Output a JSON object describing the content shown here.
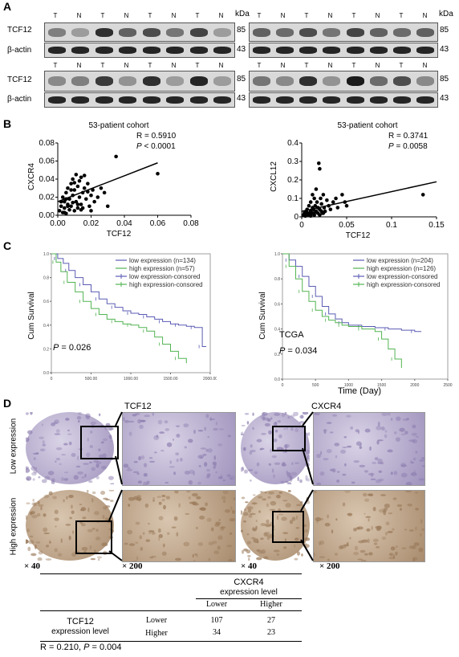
{
  "panels": {
    "A": "A",
    "B": "B",
    "C": "C",
    "D": "D"
  },
  "western": {
    "kda_label": "kDa",
    "lanes": [
      "T",
      "N",
      "T",
      "N",
      "T",
      "N",
      "T",
      "N"
    ],
    "rows": [
      {
        "label": "TCF12",
        "kda": "85"
      },
      {
        "label": "β-actin",
        "kda": "43"
      },
      {
        "label": "TCF12",
        "kda": "85"
      },
      {
        "label": "β-actin",
        "kda": "43"
      }
    ],
    "intensity": {
      "left_top": [
        0.45,
        0.3,
        0.85,
        0.6,
        0.7,
        0.5,
        0.75,
        0.3
      ],
      "right_top": [
        0.6,
        0.55,
        0.7,
        0.5,
        0.75,
        0.6,
        0.55,
        0.6
      ],
      "left_bot": [
        0.4,
        0.45,
        0.8,
        0.35,
        0.85,
        0.3,
        0.9,
        0.3
      ],
      "right_bot": [
        0.5,
        0.4,
        0.85,
        0.35,
        0.95,
        0.55,
        0.7,
        0.4
      ]
    },
    "colors": {
      "band": "#111111",
      "blot_bg": "#d6d6d6"
    }
  },
  "chart_data": [
    {
      "type": "scatter",
      "title": "53-patient cohort",
      "stat_r": "R = 0.5910",
      "stat_p_symbol": "P",
      "stat_p_value": " < 0.0001",
      "xlabel": "TCF12",
      "ylabel": "CXCR4",
      "xlim": [
        0,
        0.08
      ],
      "ylim": [
        0,
        0.08
      ],
      "xticks": [
        "0.00",
        "0.02",
        "0.04",
        "0.06",
        "0.08"
      ],
      "yticks": [
        "0.00",
        "0.02",
        "0.04",
        "0.06",
        "0.08"
      ],
      "x": [
        0.001,
        0.002,
        0.003,
        0.003,
        0.004,
        0.004,
        0.005,
        0.005,
        0.006,
        0.006,
        0.007,
        0.007,
        0.008,
        0.008,
        0.009,
        0.009,
        0.01,
        0.01,
        0.011,
        0.011,
        0.012,
        0.012,
        0.013,
        0.013,
        0.014,
        0.014,
        0.015,
        0.016,
        0.017,
        0.018,
        0.019,
        0.02,
        0.021,
        0.022,
        0.024,
        0.026,
        0.028,
        0.03,
        0.035,
        0.06,
        0.002,
        0.004,
        0.006,
        0.008,
        0.01,
        0.012,
        0.014,
        0.016,
        0.018,
        0.02,
        0.005,
        0.009,
        0.015
      ],
      "y": [
        0.005,
        0.01,
        0.003,
        0.02,
        0.008,
        0.015,
        0.002,
        0.025,
        0.012,
        0.03,
        0.006,
        0.018,
        0.035,
        0.01,
        0.022,
        0.04,
        0.005,
        0.028,
        0.015,
        0.045,
        0.008,
        0.032,
        0.02,
        0.038,
        0.012,
        0.042,
        0.025,
        0.03,
        0.018,
        0.035,
        0.01,
        0.022,
        0.028,
        0.015,
        0.02,
        0.03,
        0.025,
        0.01,
        0.065,
        0.046,
        0.015,
        0.003,
        0.01,
        0.028,
        0.036,
        0.012,
        0.006,
        0.044,
        0.026,
        0.005,
        0.018,
        0.014,
        0.008
      ],
      "fit": {
        "x": [
          0,
          0.06
        ],
        "y": [
          0.015,
          0.058
        ]
      }
    },
    {
      "type": "scatter",
      "title": "53-patient cohort",
      "stat_r": "R = 0.3741",
      "stat_p_symbol": "P",
      "stat_p_value": " = 0.0058",
      "xlabel": "TCF12",
      "ylabel": "CXCL12",
      "xlim": [
        0,
        0.15
      ],
      "ylim": [
        0,
        0.4
      ],
      "xticks": [
        "0",
        "0.05",
        "0.1",
        "0.15"
      ],
      "yticks": [
        "0",
        "0.1",
        "0.2",
        "0.3",
        "0.4"
      ],
      "x": [
        0.002,
        0.003,
        0.004,
        0.005,
        0.005,
        0.006,
        0.007,
        0.007,
        0.008,
        0.009,
        0.01,
        0.01,
        0.011,
        0.012,
        0.012,
        0.013,
        0.014,
        0.014,
        0.015,
        0.016,
        0.016,
        0.017,
        0.018,
        0.019,
        0.02,
        0.02,
        0.021,
        0.022,
        0.023,
        0.024,
        0.025,
        0.026,
        0.028,
        0.03,
        0.032,
        0.035,
        0.038,
        0.04,
        0.045,
        0.048,
        0.05,
        0.135,
        0.004,
        0.008,
        0.012,
        0.016,
        0.02,
        0.024,
        0.006,
        0.01,
        0.014,
        0.018,
        0.022
      ],
      "y": [
        0.01,
        0.02,
        0.005,
        0.03,
        0.01,
        0.04,
        0.015,
        0.02,
        0.06,
        0.01,
        0.03,
        0.08,
        0.02,
        0.05,
        0.12,
        0.04,
        0.02,
        0.1,
        0.06,
        0.03,
        0.15,
        0.08,
        0.05,
        0.29,
        0.04,
        0.26,
        0.1,
        0.07,
        0.02,
        0.12,
        0.05,
        0.03,
        0.09,
        0.06,
        0.04,
        0.08,
        0.1,
        0.05,
        0.12,
        0.08,
        0.06,
        0.12,
        0.005,
        0.01,
        0.02,
        0.03,
        0.01,
        0.02,
        0.04,
        0.005,
        0.01,
        0.02,
        0.03
      ],
      "fit": {
        "x": [
          0,
          0.15
        ],
        "y": [
          0.03,
          0.19
        ]
      }
    },
    {
      "type": "line",
      "ylabel": "Cum Survival",
      "xlabel": "",
      "p_symbol": "P",
      "p_value": " = 0.026",
      "annotation": "",
      "legend_position": "top-right",
      "legend": [
        "low expression (n=134)",
        "high expression (n=57)",
        "low expression-consored",
        "high expression-consored"
      ],
      "xlim": [
        0,
        2000
      ],
      "ylim": [
        0,
        1.0
      ],
      "xticks": [
        "0",
        "500.00",
        "1000.00",
        "1500.00",
        "2000.00"
      ],
      "yticks": [
        "0.0",
        "0.2",
        "0.4",
        "0.6",
        "0.8",
        "1.0"
      ],
      "series": [
        {
          "name": "low expression (n=134)",
          "color": "#5b5bb5",
          "x": [
            0,
            80,
            150,
            220,
            300,
            400,
            500,
            600,
            700,
            800,
            900,
            1000,
            1100,
            1200,
            1300,
            1400,
            1500,
            1600,
            1700,
            1800,
            1850,
            1900,
            1950
          ],
          "y": [
            1.0,
            0.96,
            0.92,
            0.86,
            0.8,
            0.74,
            0.68,
            0.62,
            0.58,
            0.55,
            0.52,
            0.5,
            0.49,
            0.47,
            0.45,
            0.43,
            0.41,
            0.4,
            0.39,
            0.38,
            0.38,
            0.22,
            0.22
          ]
        },
        {
          "name": "high expression (n=57)",
          "color": "#52b452",
          "x": [
            0,
            60,
            120,
            200,
            300,
            400,
            500,
            600,
            700,
            800,
            900,
            1000,
            1100,
            1200,
            1300,
            1400,
            1500,
            1600,
            1700
          ],
          "y": [
            1.0,
            0.93,
            0.85,
            0.76,
            0.68,
            0.6,
            0.54,
            0.49,
            0.45,
            0.43,
            0.41,
            0.4,
            0.38,
            0.35,
            0.3,
            0.24,
            0.18,
            0.12,
            0.08
          ]
        }
      ]
    },
    {
      "type": "line",
      "ylabel": "Cum Survival",
      "xlabel": "Time (Day)",
      "p_symbol": "P",
      "p_value": " = 0.034",
      "annotation": "TCGA",
      "legend_position": "top-right",
      "legend": [
        "low expression (n=204)",
        "high expression (n=126)",
        "low expression-consored",
        "high expression-consored"
      ],
      "xlim": [
        0,
        2500
      ],
      "ylim": [
        0,
        1.0
      ],
      "xticks": [
        "0",
        "500",
        "1000",
        "1500",
        "2000",
        "2500"
      ],
      "yticks": [
        "0.0",
        "0.2",
        "0.4",
        "0.6",
        "0.8",
        "1.0"
      ],
      "series": [
        {
          "name": "low expression (n=204)",
          "color": "#5b5bb5",
          "x": [
            0,
            100,
            200,
            300,
            400,
            500,
            600,
            700,
            800,
            900,
            1000,
            1200,
            1400,
            1600,
            1800,
            2000,
            2100
          ],
          "y": [
            1.0,
            0.95,
            0.9,
            0.82,
            0.74,
            0.66,
            0.58,
            0.52,
            0.48,
            0.45,
            0.43,
            0.42,
            0.41,
            0.4,
            0.39,
            0.38,
            0.38
          ]
        },
        {
          "name": "high expression (n=126)",
          "color": "#52b452",
          "x": [
            0,
            100,
            200,
            300,
            400,
            500,
            600,
            700,
            800,
            900,
            1000,
            1200,
            1400,
            1500,
            1600,
            1700,
            1800
          ],
          "y": [
            1.0,
            0.9,
            0.8,
            0.7,
            0.62,
            0.55,
            0.5,
            0.47,
            0.45,
            0.43,
            0.42,
            0.4,
            0.38,
            0.32,
            0.24,
            0.16,
            0.09
          ]
        }
      ]
    }
  ],
  "ihc": {
    "marker_left": "TCF12",
    "marker_right": "CXCR4",
    "row_low": "Low expression",
    "row_high": "High expression",
    "mag_low": "× 40",
    "mag_high": "× 200",
    "colors": {
      "low_bg": "#d9d3e6",
      "low_stain": "#8e7fb0",
      "high_bg": "#d9c6b0",
      "high_stain": "#9a7a5a"
    }
  },
  "table": {
    "col_group": "CXCR4",
    "col_group_sub": "expression level",
    "cols": [
      "Lower",
      "Higher"
    ],
    "row_group": "TCF12",
    "row_group_sub": "expression level",
    "rows": [
      {
        "label": "Lower",
        "values": [
          "107",
          "27"
        ]
      },
      {
        "label": "Higher",
        "values": [
          "34",
          "23"
        ]
      }
    ],
    "footer_r": "R = 0.210, ",
    "footer_p_symbol": "P",
    "footer_p_value": " = 0.004"
  }
}
